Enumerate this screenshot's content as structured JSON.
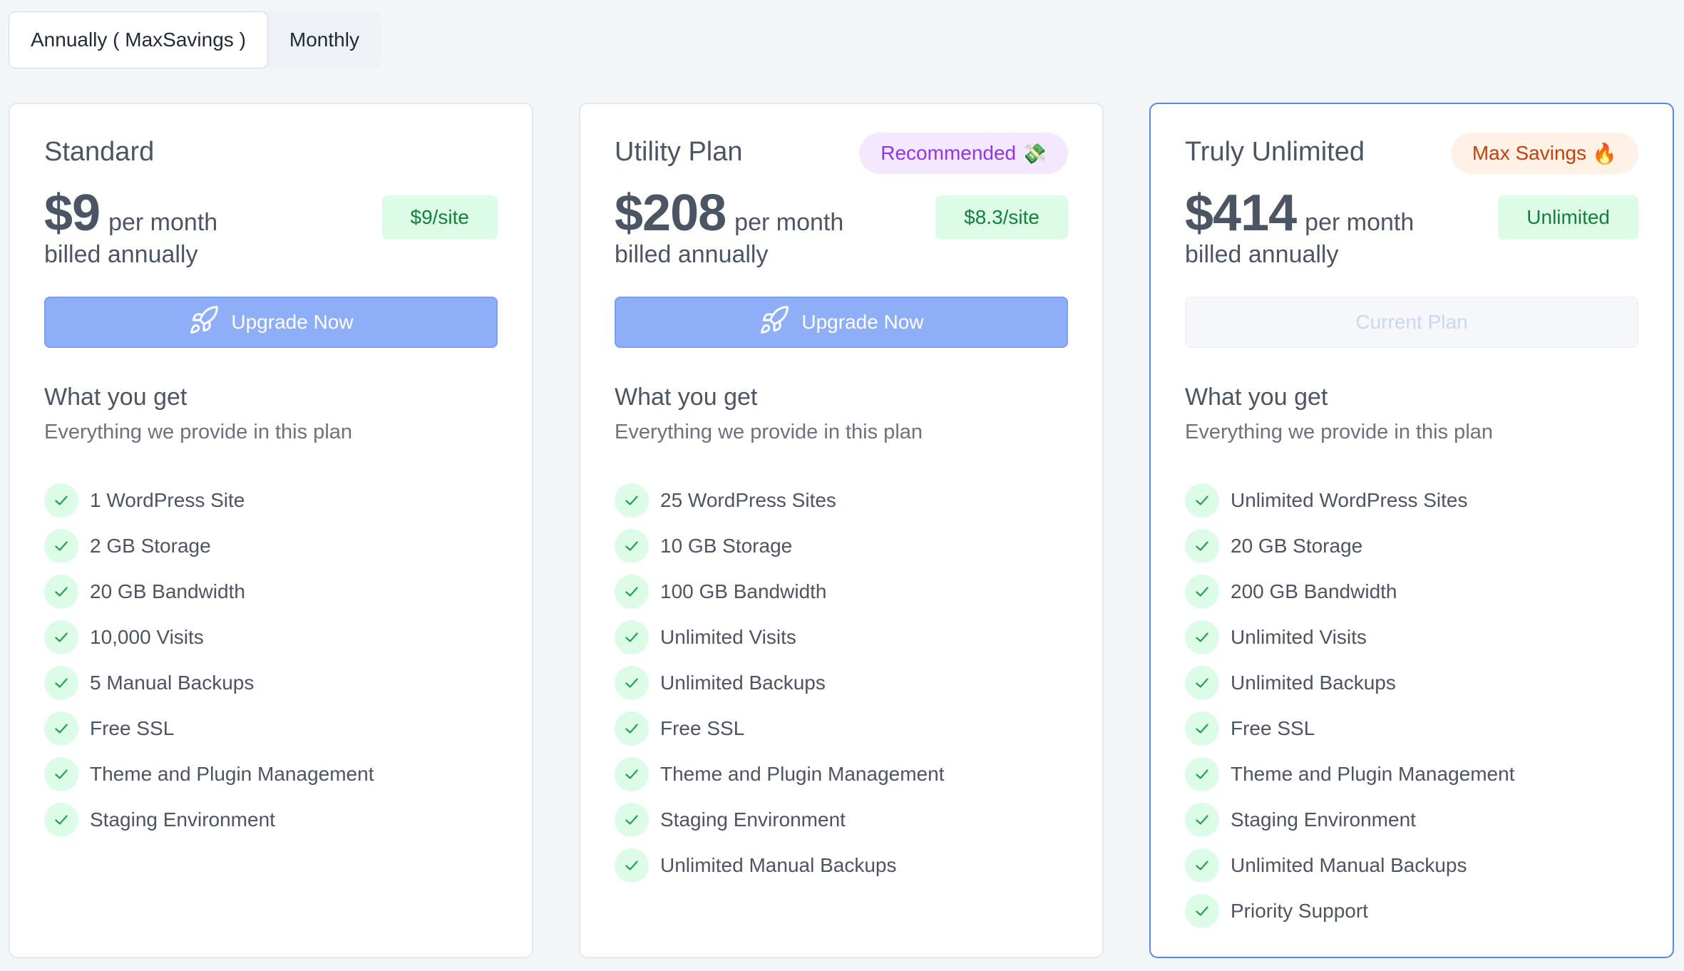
{
  "billing_toggle": {
    "options": [
      {
        "label": "Annually ( MaxSavings )",
        "active": true
      },
      {
        "label": "Monthly",
        "active": false
      }
    ]
  },
  "colors": {
    "accent_button": "#8eaff7",
    "selected_border": "#5b86e5",
    "green_badge_bg": "#dcfce7",
    "green_text": "#15803d"
  },
  "plans": [
    {
      "name": "Standard",
      "badge": "",
      "price": "$9",
      "per": "per month",
      "billed": "billed annually",
      "per_site": "$9/site",
      "button": "Upgrade Now",
      "button_icon": "rocket-icon",
      "what_you_get": "What you get",
      "subtitle": "Everything we provide in this plan",
      "features": [
        "1 WordPress Site",
        "2 GB Storage",
        "20 GB Bandwidth",
        "10,000 Visits",
        "5 Manual Backups",
        "Free SSL",
        "Theme and Plugin Management",
        "Staging Environment"
      ]
    },
    {
      "name": "Utility Plan",
      "badge": "Recommended",
      "badge_icon": "money-icon",
      "price": "$208",
      "per": "per month",
      "billed": "billed annually",
      "per_site": "$8.3/site",
      "button": "Upgrade Now",
      "button_icon": "rocket-icon",
      "what_you_get": "What you get",
      "subtitle": "Everything we provide in this plan",
      "features": [
        "25 WordPress Sites",
        "10 GB Storage",
        "100 GB Bandwidth",
        "Unlimited Visits",
        "Unlimited Backups",
        "Free SSL",
        "Theme and Plugin Management",
        "Staging Environment",
        "Unlimited Manual Backups"
      ]
    },
    {
      "name": "Truly Unlimited",
      "badge": "Max Savings",
      "badge_icon": "fire-icon",
      "price": "$414",
      "per": "per month",
      "billed": "billed annually",
      "per_site": "Unlimited",
      "button": "Current Plan",
      "what_you_get": "What you get",
      "subtitle": "Everything we provide in this plan",
      "features": [
        "Unlimited WordPress Sites",
        "20 GB Storage",
        "200 GB Bandwidth",
        "Unlimited Visits",
        "Unlimited Backups",
        "Free SSL",
        "Theme and Plugin Management",
        "Staging Environment",
        "Unlimited Manual Backups",
        "Priority Support"
      ]
    }
  ]
}
